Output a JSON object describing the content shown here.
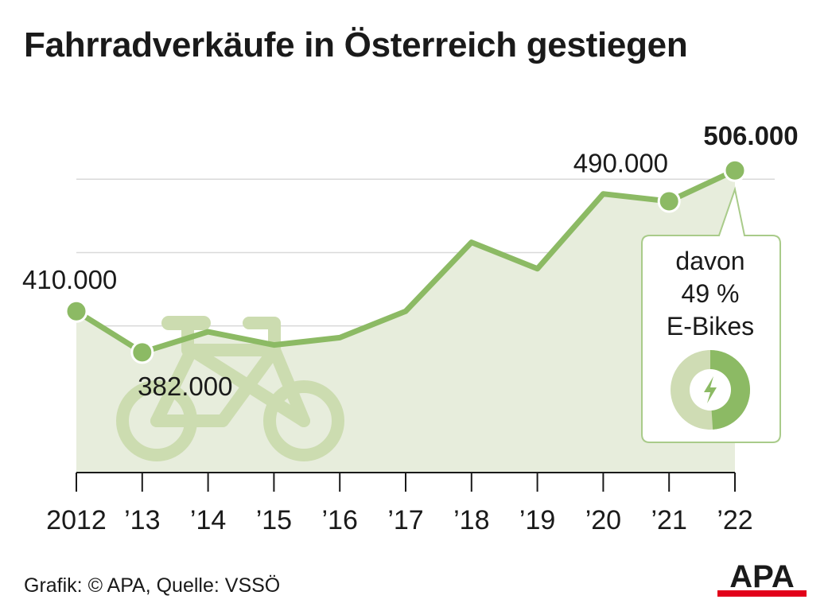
{
  "title": "Fahrradverkäufe in Österreich gestiegen",
  "source": "Grafik: © APA, Quelle: VSSÖ",
  "logo_text": "APA",
  "colors": {
    "line": "#8cba64",
    "area": "#e7eddc",
    "icon": "#ccdcb0",
    "grid": "#d9d9d9",
    "logo_red": "#e2001a"
  },
  "chart_data": {
    "type": "area",
    "title": "Fahrradverkäufe in Österreich gestiegen",
    "x": [
      "2012",
      "’13",
      "’14",
      "’15",
      "’16",
      "’17",
      "’18",
      "’19",
      "’20",
      "’21",
      "’22"
    ],
    "values": [
      410000,
      382000,
      396000,
      387000,
      392000,
      410000,
      457000,
      439000,
      490000,
      485000,
      506000
    ],
    "ylim": [
      300000,
      530000
    ],
    "grid": true,
    "data_labels": [
      {
        "index": 0,
        "text": "410.000"
      },
      {
        "index": 1,
        "text": "382.000"
      },
      {
        "index": 8,
        "text": "490.000"
      },
      {
        "index": 10,
        "text": "506.000"
      }
    ],
    "markers": [
      0,
      1,
      9,
      10
    ],
    "callout": {
      "lines": [
        "davon",
        "49 %",
        "E-Bikes"
      ],
      "ebike_share": 0.49,
      "icon": "lightning-icon"
    },
    "icon": "bicycle-icon"
  }
}
